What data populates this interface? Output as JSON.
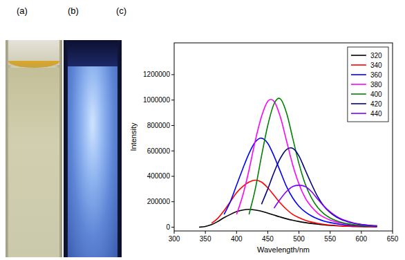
{
  "panels": [
    {
      "label": "(a)"
    },
    {
      "label": "(b)"
    },
    {
      "label": "(c)"
    }
  ],
  "chart_data": {
    "type": "line",
    "xlabel": "Wavelength/nm",
    "ylabel": "Intensity",
    "x": [
      340,
      350,
      360,
      370,
      380,
      390,
      400,
      410,
      420,
      430,
      440,
      450,
      460,
      470,
      480,
      490,
      500,
      510,
      520,
      530,
      540,
      550,
      560,
      570,
      580,
      590,
      600,
      610,
      620,
      625
    ],
    "xlim": [
      300,
      650
    ],
    "xticks": [
      300,
      350,
      400,
      450,
      500,
      550,
      600,
      650
    ],
    "ylim": [
      -30000,
      1450000
    ],
    "yticks": [
      0,
      200000,
      400000,
      600000,
      800000,
      1000000,
      1200000
    ],
    "legend": "top-right",
    "grid": false,
    "series": [
      {
        "name": "320",
        "color": "#000000",
        "values": [
          0,
          5000,
          20000,
          45000,
          75000,
          100000,
          122000,
          135000,
          140000,
          135000,
          125000,
          110000,
          95000,
          80000,
          66000,
          54000,
          44000,
          36000,
          29000,
          23000,
          18000,
          14000,
          11000,
          9000,
          7000,
          6000,
          5000,
          4000,
          3000,
          3000
        ]
      },
      {
        "name": "340",
        "color": "#ff0000",
        "values": [
          null,
          null,
          30000,
          70000,
          130000,
          200000,
          270000,
          320000,
          355000,
          370000,
          355000,
          310000,
          250000,
          190000,
          140000,
          100000,
          75000,
          55000,
          40000,
          30000,
          22000,
          16000,
          12000,
          9000,
          7000,
          5000,
          4000,
          3000,
          2500,
          2000
        ]
      },
      {
        "name": "360",
        "color": "#0000ff",
        "values": [
          null,
          null,
          null,
          null,
          100000,
          200000,
          330000,
          460000,
          580000,
          670000,
          700000,
          660000,
          560000,
          440000,
          320000,
          230000,
          165000,
          120000,
          88000,
          65000,
          48000,
          36000,
          27000,
          20000,
          15000,
          12000,
          9000,
          7000,
          6000,
          5000
        ]
      },
      {
        "name": "380",
        "color": "#ff00ff",
        "values": [
          null,
          null,
          null,
          null,
          null,
          null,
          100000,
          250000,
          450000,
          680000,
          870000,
          990000,
          990000,
          870000,
          680000,
          490000,
          340000,
          230000,
          160000,
          110000,
          78000,
          56000,
          40000,
          30000,
          22000,
          17000,
          13000,
          10000,
          8000,
          7000
        ]
      },
      {
        "name": "400",
        "color": "#008000",
        "values": [
          null,
          null,
          null,
          null,
          null,
          null,
          null,
          null,
          100000,
          300000,
          560000,
          800000,
          970000,
          1010000,
          900000,
          700000,
          500000,
          340000,
          230000,
          155000,
          105000,
          72000,
          50000,
          35000,
          25000,
          18000,
          13000,
          10000,
          8000,
          7000
        ]
      },
      {
        "name": "420",
        "color": "#000080",
        "values": [
          null,
          null,
          null,
          null,
          null,
          null,
          null,
          null,
          null,
          null,
          180000,
          300000,
          430000,
          540000,
          610000,
          620000,
          560000,
          450000,
          340000,
          240000,
          165000,
          115000,
          80000,
          56000,
          40000,
          28000,
          20000,
          15000,
          11000,
          10000
        ]
      },
      {
        "name": "440",
        "color": "#8000ff",
        "values": [
          null,
          null,
          null,
          null,
          null,
          null,
          null,
          null,
          null,
          null,
          null,
          null,
          150000,
          220000,
          280000,
          320000,
          330000,
          320000,
          280000,
          220000,
          165000,
          120000,
          85000,
          60000,
          43000,
          30000,
          22000,
          16000,
          12000,
          10000
        ]
      }
    ]
  }
}
